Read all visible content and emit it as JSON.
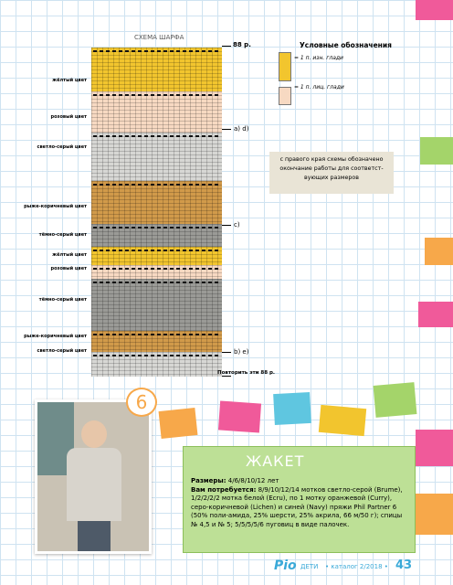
{
  "chart": {
    "title": "СХЕМА ШАРФА",
    "rows_top": "88 р.",
    "repeat": "Повторить эти 88 р.",
    "markers": [
      "a) d)",
      "c)",
      "b) e)"
    ],
    "bands": [
      "жёлтый цвет",
      "розовый цвет",
      "светло-серый цвет",
      "рыже-коричневый цвет",
      "тёмно-серый цвет",
      "жёлтый цвет",
      "розовый цвет",
      "тёмно-серый цвет",
      "рыже-коричневый цвет",
      "светло-серый цвет"
    ]
  },
  "legend": {
    "title": "Условные обозначения",
    "items": [
      "= 1 п. изн. глади",
      "= 1 п. лиц. глади"
    ]
  },
  "note": "с правого края схемы обозначено окончание работы для соответст-вующих размеров",
  "model": {
    "number": "6",
    "title": "ЖАКЕТ",
    "sizes_label": "Размеры:",
    "sizes": "4/6/8/10/12 лет",
    "materials_label": "Вам потребуется:",
    "materials": "8/9/10/12/14 мотков светло-серой (Brume), 1/2/2/2/2 мотка белой (Ecru), по 1 мотку оранжевой (Curry), серо-коричневой (Lichen) и синей (Navy) пряжи Phil Partner 6 (50% поли-амида, 25% шерсти, 25% акрила, 66 м/50 г); спицы № 4,5 и № 5; 5/5/5/5/6 пуговиц в виде палочек."
  },
  "footer": {
    "brand": "Pio",
    "section": "ДЕТИ",
    "issue": "• каталог 2/2018 •",
    "page": "43"
  }
}
